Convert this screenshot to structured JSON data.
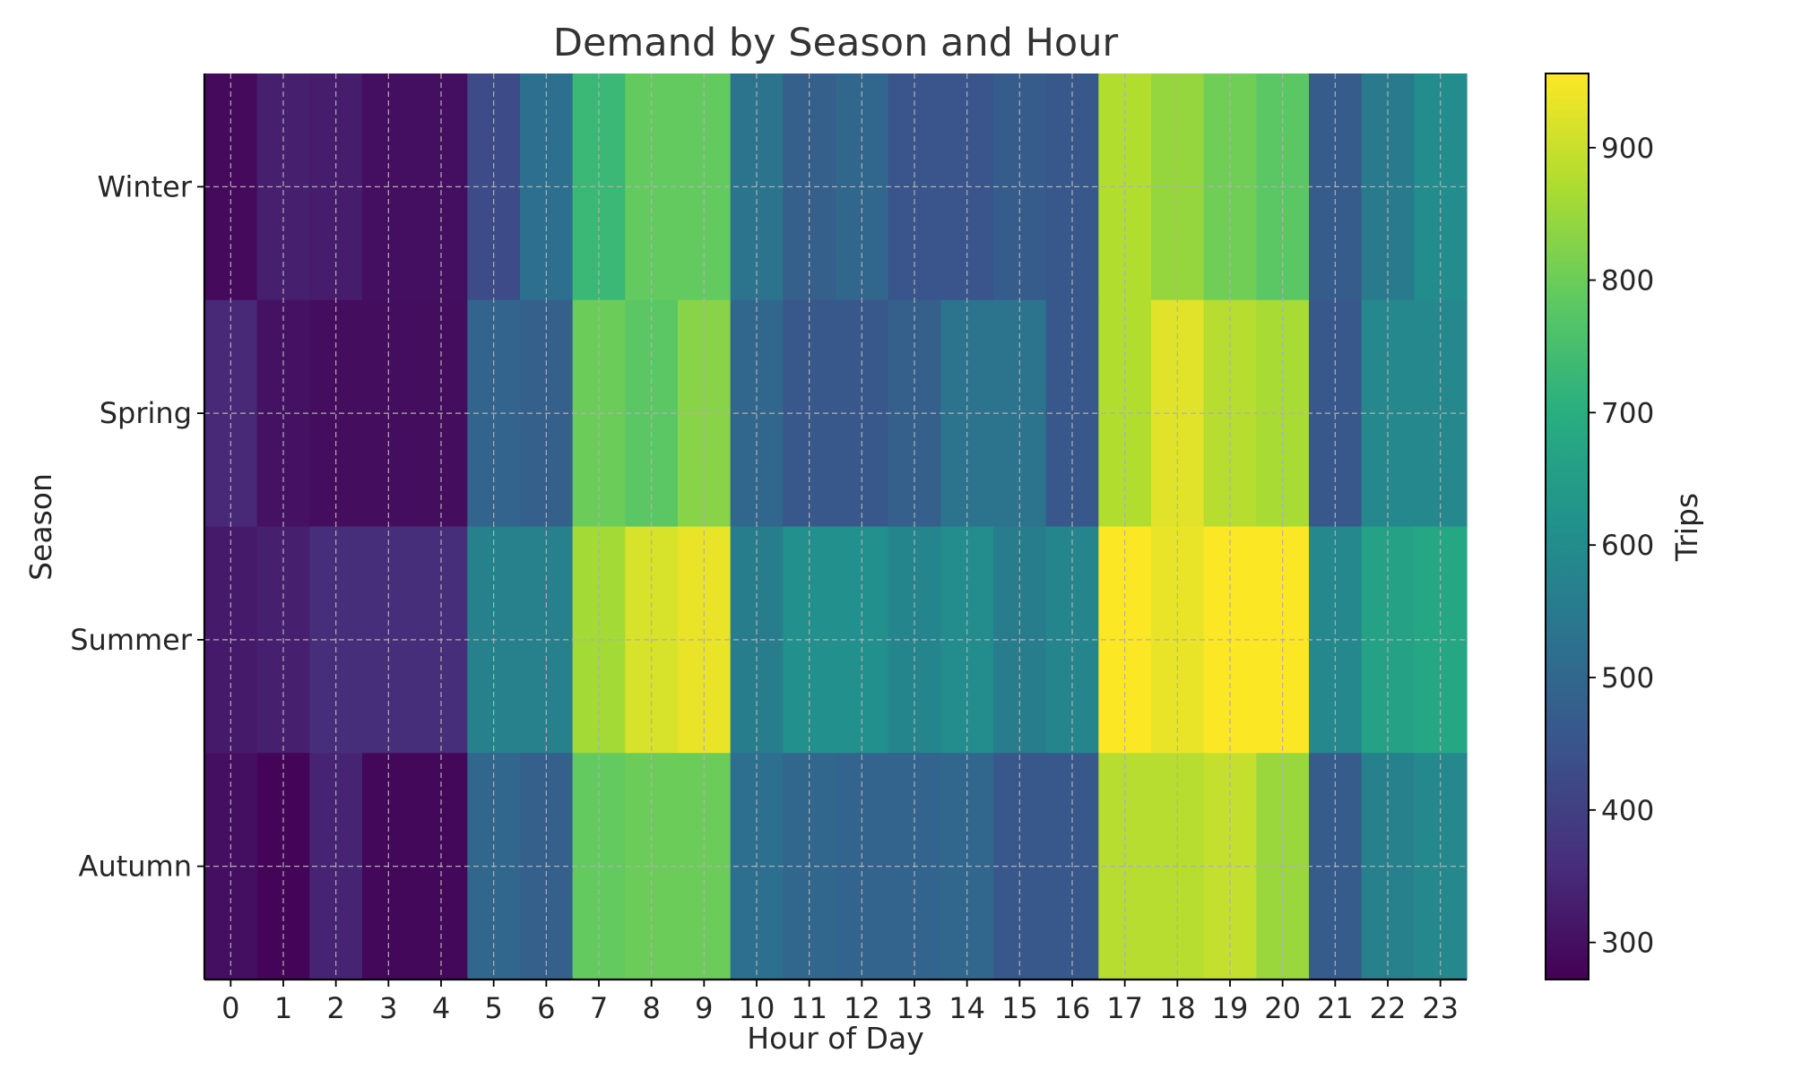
{
  "chart_data": {
    "type": "heatmap",
    "title": "Demand by Season and Hour",
    "xlabel": "Hour of Day",
    "ylabel": "Season",
    "colorbar_label": "Trips",
    "colormap": "viridis",
    "colorbar_range": [
      272,
      956
    ],
    "colorbar_ticks": [
      300,
      400,
      500,
      600,
      700,
      800,
      900
    ],
    "grid": true,
    "x": [
      "0",
      "1",
      "2",
      "3",
      "4",
      "5",
      "6",
      "7",
      "8",
      "9",
      "10",
      "11",
      "12",
      "13",
      "14",
      "15",
      "16",
      "17",
      "18",
      "19",
      "20",
      "21",
      "22",
      "23"
    ],
    "y": [
      "Winter",
      "Spring",
      "Summer",
      "Autumn"
    ],
    "values": [
      [
        290,
        330,
        325,
        300,
        300,
        430,
        520,
        730,
        790,
        790,
        530,
        480,
        500,
        450,
        450,
        470,
        460,
        875,
        845,
        805,
        780,
        470,
        550,
        600
      ],
      [
        350,
        305,
        295,
        295,
        295,
        490,
        480,
        800,
        780,
        830,
        500,
        460,
        460,
        480,
        530,
        530,
        460,
        875,
        925,
        880,
        865,
        460,
        590,
        590
      ],
      [
        320,
        330,
        360,
        360,
        360,
        570,
        570,
        860,
        915,
        935,
        560,
        610,
        610,
        580,
        600,
        560,
        580,
        955,
        935,
        955,
        955,
        590,
        660,
        680
      ],
      [
        300,
        280,
        340,
        285,
        285,
        500,
        480,
        790,
        800,
        800,
        520,
        500,
        490,
        490,
        500,
        460,
        460,
        880,
        880,
        895,
        850,
        470,
        570,
        590
      ]
    ]
  },
  "colors": {
    "grid": "#b0b0b0",
    "axis": "#000000"
  }
}
